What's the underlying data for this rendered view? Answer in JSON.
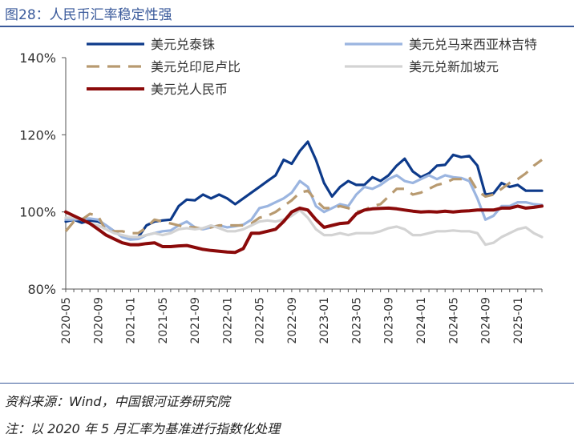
{
  "header": {
    "title": "图28：人民币汇率稳定性强"
  },
  "footer": {
    "source": "资料来源：Wind，中国银河证券研究院",
    "note": "注：以 2020 年 5 月汇率为基准进行指数化处理"
  },
  "chart_data": {
    "type": "line",
    "title": "图28：人民币汇率稳定性强",
    "xlabel": "",
    "ylabel": "",
    "ylim": [
      80,
      140
    ],
    "y_ticks": [
      80,
      100,
      120,
      140
    ],
    "y_tick_labels": [
      "80%",
      "100%",
      "120%",
      "140%"
    ],
    "x_tick_labels": [
      "2020-05",
      "2020-09",
      "2021-01",
      "2021-05",
      "2021-09",
      "2022-01",
      "2022-05",
      "2022-09",
      "2023-01",
      "2023-05",
      "2023-09",
      "2024-01",
      "2024-05",
      "2024-09",
      "2025-01"
    ],
    "x_months": [
      "2020-05",
      "2020-06",
      "2020-07",
      "2020-08",
      "2020-09",
      "2020-10",
      "2020-11",
      "2020-12",
      "2021-01",
      "2021-02",
      "2021-03",
      "2021-04",
      "2021-05",
      "2021-06",
      "2021-07",
      "2021-08",
      "2021-09",
      "2021-10",
      "2021-11",
      "2021-12",
      "2022-01",
      "2022-02",
      "2022-03",
      "2022-04",
      "2022-05",
      "2022-06",
      "2022-07",
      "2022-08",
      "2022-09",
      "2022-10",
      "2022-11",
      "2022-12",
      "2023-01",
      "2023-02",
      "2023-03",
      "2023-04",
      "2023-05",
      "2023-06",
      "2023-07",
      "2023-08",
      "2023-09",
      "2023-10",
      "2023-11",
      "2023-12",
      "2024-01",
      "2024-02",
      "2024-03",
      "2024-04",
      "2024-05",
      "2024-06",
      "2024-07",
      "2024-08",
      "2024-09",
      "2024-10",
      "2024-11",
      "2024-12",
      "2025-01",
      "2025-02",
      "2025-03",
      "2025-04"
    ],
    "grid": false,
    "legend_position": "top",
    "series": [
      {
        "name": "美元兑泰铢",
        "color": "#0d3a8a",
        "dash": "solid",
        "width": 3.2,
        "values": [
          97.5,
          98.0,
          97.2,
          97.8,
          97.5,
          96.5,
          95.0,
          93.5,
          93.0,
          93.5,
          96.5,
          97.5,
          97.8,
          98.0,
          101.5,
          103.2,
          103.0,
          104.5,
          103.5,
          104.5,
          103.5,
          102.0,
          103.5,
          105.0,
          106.5,
          108.0,
          109.5,
          113.5,
          112.5,
          115.8,
          118.2,
          113.5,
          107.5,
          104.0,
          106.5,
          108.0,
          107.0,
          107.0,
          109.0,
          108.0,
          109.5,
          112.0,
          113.8,
          110.5,
          109.0,
          110.0,
          112.0,
          112.2,
          114.8,
          114.2,
          114.5,
          112.0,
          104.5,
          104.8,
          107.5,
          106.5,
          107.0,
          105.5,
          105.5,
          105.5
        ]
      },
      {
        "name": "美元兑马来西亚林吉特",
        "color": "#9bb5e0",
        "dash": "solid",
        "width": 3.2,
        "values": [
          98.0,
          98.0,
          98.2,
          98.3,
          98.0,
          96.5,
          95.0,
          93.5,
          92.8,
          93.0,
          94.0,
          94.5,
          95.0,
          95.2,
          96.5,
          97.5,
          96.0,
          95.5,
          96.0,
          96.5,
          96.0,
          96.3,
          96.7,
          98.0,
          101.0,
          101.5,
          102.5,
          103.5,
          105.0,
          108.0,
          106.5,
          101.5,
          100.0,
          101.0,
          102.0,
          101.5,
          104.5,
          106.5,
          106.0,
          107.0,
          108.5,
          109.5,
          108.0,
          107.5,
          108.5,
          109.5,
          108.5,
          109.5,
          109.0,
          108.8,
          108.0,
          103.5,
          98.0,
          99.0,
          101.5,
          101.5,
          102.5,
          102.5,
          102.0,
          101.8
        ]
      },
      {
        "name": "美元兑印尼卢比",
        "color": "#b89a70",
        "dash": "dashed",
        "width": 3.2,
        "values": [
          95.0,
          97.5,
          98.0,
          99.5,
          99.0,
          95.0,
          95.0,
          95.0,
          94.5,
          94.5,
          96.0,
          98.0,
          97.5,
          97.0,
          96.5,
          96.0,
          96.0,
          95.5,
          96.0,
          96.5,
          96.5,
          96.5,
          96.5,
          97.0,
          98.5,
          99.0,
          100.0,
          101.5,
          103.0,
          105.0,
          105.5,
          103.0,
          101.0,
          101.0,
          101.5,
          101.0,
          100.0,
          100.5,
          101.5,
          102.0,
          104.0,
          106.0,
          106.0,
          104.5,
          105.0,
          106.0,
          107.0,
          107.5,
          108.5,
          108.5,
          109.0,
          105.5,
          104.0,
          104.5,
          106.0,
          107.5,
          108.5,
          110.0,
          112.0,
          113.5
        ]
      },
      {
        "name": "美元兑新加坡元",
        "color": "#d3d3d3",
        "dash": "solid",
        "width": 3.2,
        "values": [
          98.5,
          98.5,
          98.0,
          97.0,
          96.5,
          95.5,
          94.5,
          94.0,
          93.5,
          93.5,
          94.0,
          94.5,
          94.0,
          94.5,
          95.5,
          95.8,
          95.5,
          95.8,
          96.5,
          95.8,
          95.0,
          95.0,
          95.5,
          96.5,
          97.5,
          97.8,
          97.5,
          98.0,
          99.0,
          100.5,
          98.5,
          95.5,
          94.0,
          94.0,
          94.5,
          94.0,
          94.5,
          94.5,
          94.5,
          95.0,
          95.8,
          96.2,
          95.5,
          94.0,
          94.0,
          94.5,
          95.0,
          95.0,
          95.2,
          95.0,
          95.0,
          94.5,
          91.5,
          92.0,
          93.5,
          94.5,
          95.5,
          96.0,
          94.5,
          93.5
        ]
      },
      {
        "name": "美元兑人民币",
        "color": "#8b0a0a",
        "dash": "solid",
        "width": 4.0,
        "values": [
          100.0,
          99.0,
          98.0,
          97.0,
          95.5,
          94.0,
          93.0,
          92.0,
          91.5,
          91.5,
          91.8,
          92.0,
          91.0,
          91.0,
          91.2,
          91.3,
          90.8,
          90.3,
          90.0,
          89.8,
          89.6,
          89.5,
          90.5,
          94.5,
          94.5,
          95.0,
          95.5,
          97.5,
          100.0,
          101.0,
          100.5,
          98.0,
          96.0,
          96.5,
          97.0,
          97.2,
          99.5,
          100.5,
          100.8,
          100.9,
          101.0,
          100.8,
          100.5,
          100.2,
          100.0,
          100.1,
          100.0,
          100.2,
          100.0,
          100.2,
          100.3,
          100.5,
          100.5,
          100.5,
          101.0,
          101.0,
          101.5,
          101.0,
          101.2,
          101.5
        ]
      }
    ]
  }
}
